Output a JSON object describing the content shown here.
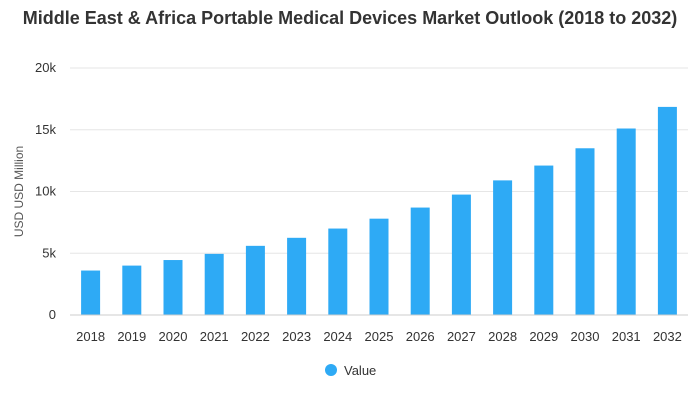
{
  "chart_data": {
    "type": "bar",
    "title": "Middle East & Africa Portable Medical Devices Market Outlook (2018 to 2032)",
    "xlabel": "",
    "ylabel": "USD USD Million",
    "categories": [
      "2018",
      "2019",
      "2020",
      "2021",
      "2022",
      "2023",
      "2024",
      "2025",
      "2026",
      "2027",
      "2028",
      "2029",
      "2030",
      "2031",
      "2032"
    ],
    "series": [
      {
        "name": "Value",
        "values": [
          3600,
          4000,
          4450,
          4950,
          5600,
          6250,
          7000,
          7800,
          8700,
          9750,
          10900,
          12100,
          13500,
          15100,
          16850
        ]
      }
    ],
    "ylim": [
      0,
      20000
    ],
    "yticks": [
      0,
      5000,
      10000,
      15000,
      20000
    ],
    "ytick_labels": [
      "0",
      "5k",
      "10k",
      "15k",
      "20k"
    ],
    "grid": true,
    "legend": "bottom-center",
    "colors": {
      "bar": "#2eaaf5",
      "grid": "#e6e6e6",
      "axis": "#cccccc"
    }
  }
}
